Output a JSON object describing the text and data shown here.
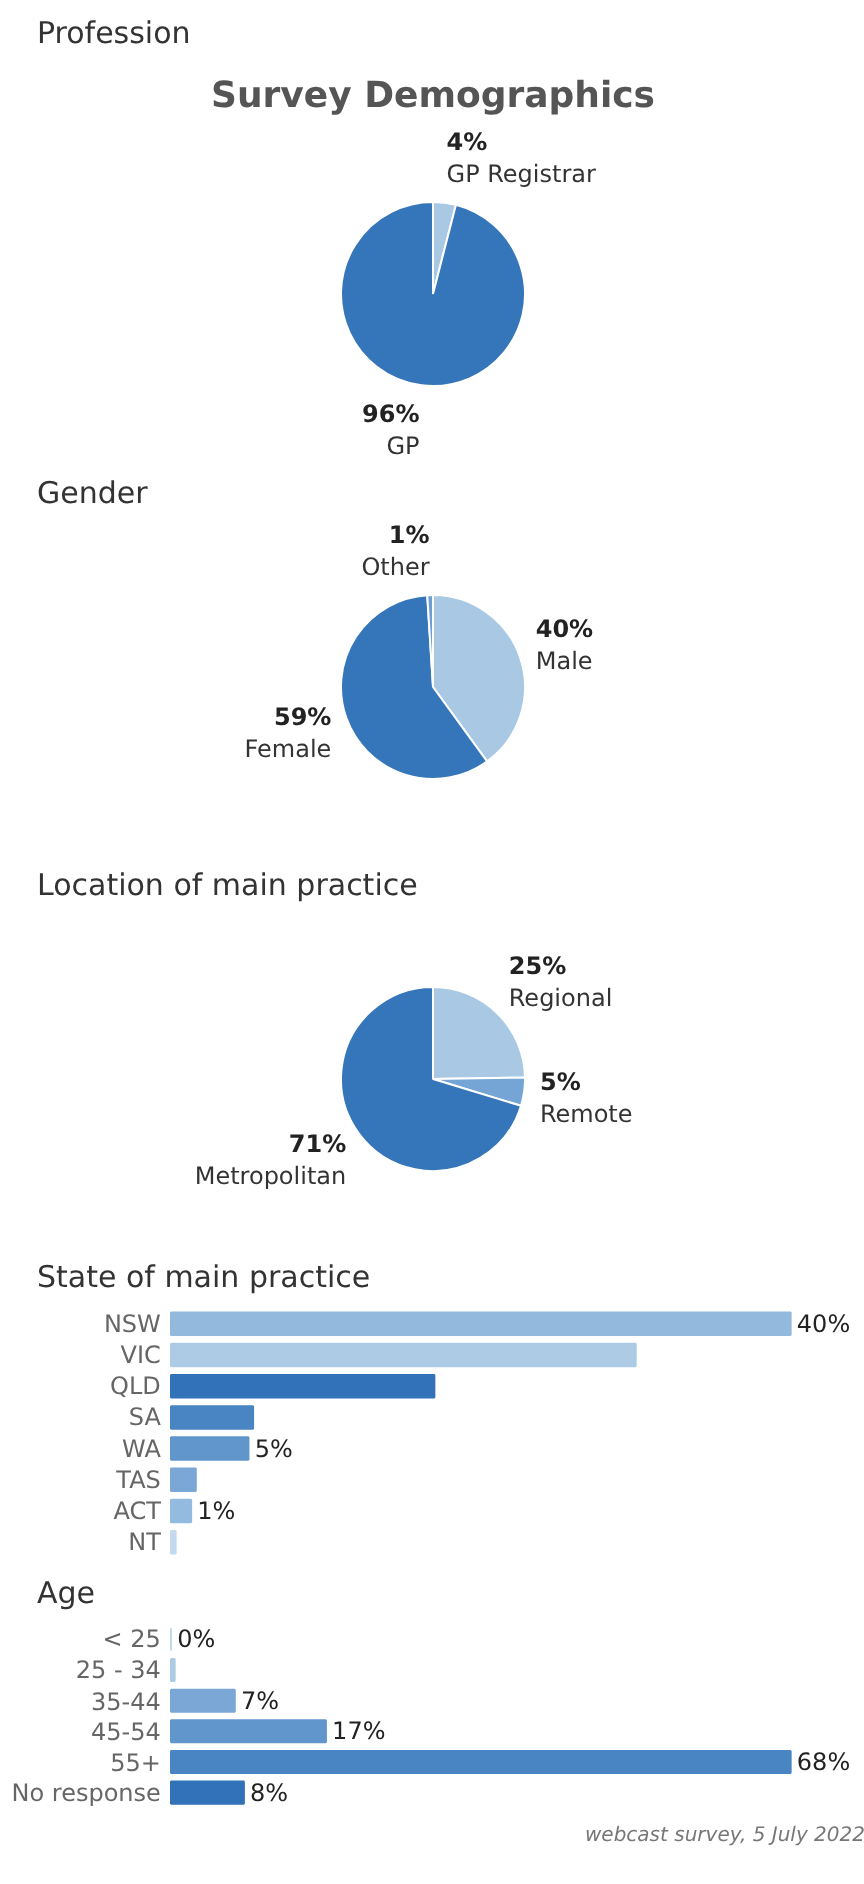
{
  "chart_data": [
    {
      "type": "pie",
      "title": "Survey Demographics",
      "subtitle": "Profession",
      "categories": [
        "GP Registrar",
        "GP"
      ],
      "values": [
        4,
        96
      ],
      "colors": [
        "#a9c8e4",
        "#3575b9"
      ],
      "value_labels": [
        "4%",
        "96%"
      ]
    },
    {
      "type": "pie",
      "title": "Gender",
      "categories": [
        "Male",
        "Female",
        "Other"
      ],
      "values": [
        40,
        59,
        1
      ],
      "colors": [
        "#a9c8e4",
        "#3575b9",
        "#6f9fd0"
      ],
      "value_labels": [
        "40%",
        "59%",
        "1%"
      ]
    },
    {
      "type": "pie",
      "title": "Location of main practice",
      "categories": [
        "Regional",
        "Remote",
        "Metropolitan"
      ],
      "values": [
        25,
        5,
        71
      ],
      "colors": [
        "#a9c8e4",
        "#75a5d4",
        "#3575b9"
      ],
      "value_labels": [
        "25%",
        "5%",
        "71%"
      ]
    },
    {
      "type": "bar",
      "orientation": "horizontal",
      "title": "State of main practice",
      "categories": [
        "NSW",
        "VIC",
        "QLD",
        "SA",
        "WA",
        "TAS",
        "ACT",
        "NT"
      ],
      "values": [
        40,
        30,
        17,
        5.3,
        5,
        1.6,
        1.3,
        0.3
      ],
      "colors": [
        "#93b9dc",
        "#aecbe5",
        "#3272b8",
        "#4a85c3",
        "#6196cc",
        "#7aa7d6",
        "#93badf",
        "#c5d9ee"
      ],
      "value_labels": [
        "40%",
        null,
        null,
        null,
        "5%",
        null,
        "1%",
        null
      ]
    },
    {
      "type": "bar",
      "orientation": "horizontal",
      "title": "Age",
      "categories": [
        "< 25",
        "25 - 34",
        "35-44",
        "45-54",
        "55+",
        "No response"
      ],
      "values": [
        0,
        0.4,
        7,
        17,
        68,
        8
      ],
      "colors": [
        "#c5d9ee",
        "#aecbe5",
        "#7aa7d6",
        "#6196cc",
        "#4a85c3",
        "#3272b8"
      ],
      "value_labels": [
        "0%",
        null,
        "7%",
        "17%",
        "68%",
        "8%"
      ],
      "annotations": [
        "webcast survey, 5 July 2022"
      ]
    }
  ]
}
